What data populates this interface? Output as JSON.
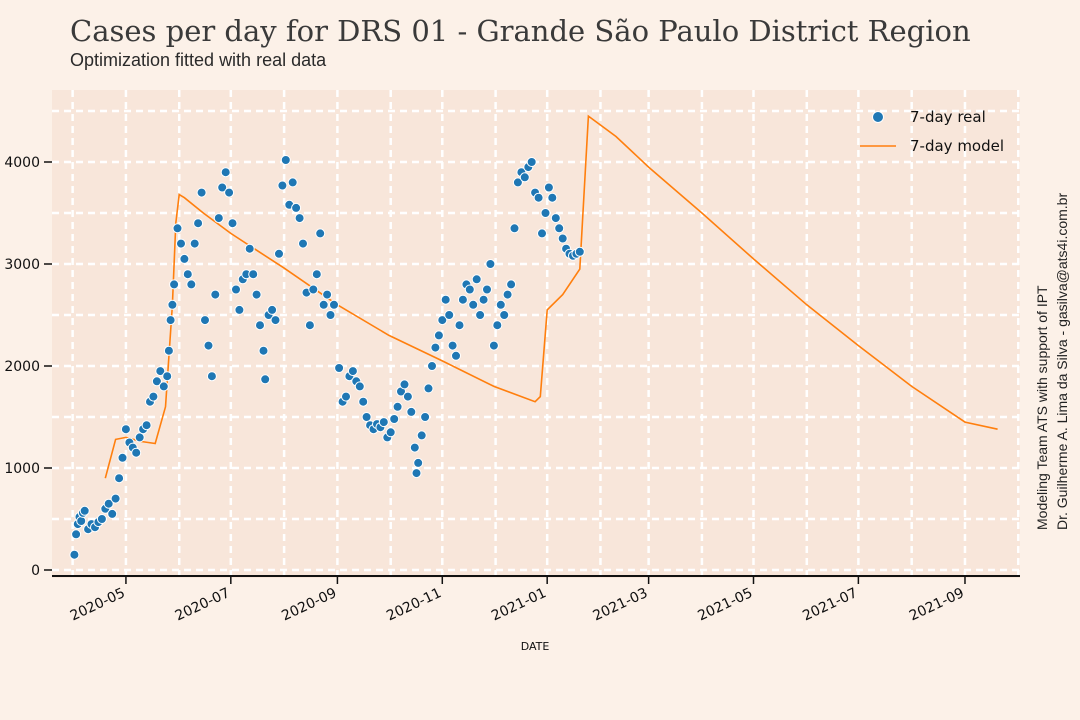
{
  "header": {
    "title": "Cases per day for DRS 01 - Grande São Paulo District Region",
    "subtitle": "Optimization fitted with real data"
  },
  "credits": {
    "line1": "Modeling Team ATS with support of IPT",
    "line2": "Dr. Guilherme A. Lima da Silva - gasilva@ats4i.com.br"
  },
  "colors": {
    "background": "#fcf1e8",
    "plot_bg": "#f8e6da",
    "grid": "#ffffff",
    "real": "#1f77b4",
    "model": "#ff7f0e"
  },
  "chart_data": {
    "type": "line",
    "xlabel": "DATE",
    "ylabel": "",
    "x_range": [
      "2020-03-19",
      "2021-10-03"
    ],
    "ylim": [
      -50,
      4700
    ],
    "yticks": [
      0,
      1000,
      2000,
      3000,
      4000
    ],
    "ytick_labels": [
      "0",
      "1000",
      "2000",
      "3000",
      "4000"
    ],
    "xticks": [
      "2020-05-01",
      "2020-07-01",
      "2020-09-01",
      "2020-11-01",
      "2021-01-01",
      "2021-03-01",
      "2021-05-01",
      "2021-07-01",
      "2021-09-01"
    ],
    "xtick_labels": [
      "2020-05",
      "2020-07",
      "2020-09",
      "2020-11",
      "2021-01",
      "2021-03",
      "2021-05",
      "2021-07",
      "2021-09"
    ],
    "grid": true,
    "legend_position": "top-right",
    "series": [
      {
        "name": "7-day real",
        "kind": "scatter",
        "points": [
          [
            "2020-04-01",
            150
          ],
          [
            "2020-04-02",
            350
          ],
          [
            "2020-04-03",
            450
          ],
          [
            "2020-04-04",
            520
          ],
          [
            "2020-04-05",
            480
          ],
          [
            "2020-04-06",
            560
          ],
          [
            "2020-04-07",
            580
          ],
          [
            "2020-04-09",
            400
          ],
          [
            "2020-04-11",
            450
          ],
          [
            "2020-04-13",
            420
          ],
          [
            "2020-04-15",
            470
          ],
          [
            "2020-04-17",
            500
          ],
          [
            "2020-04-19",
            600
          ],
          [
            "2020-04-21",
            650
          ],
          [
            "2020-04-23",
            550
          ],
          [
            "2020-04-25",
            700
          ],
          [
            "2020-04-27",
            900
          ],
          [
            "2020-04-29",
            1100
          ],
          [
            "2020-05-01",
            1380
          ],
          [
            "2020-05-03",
            1250
          ],
          [
            "2020-05-05",
            1200
          ],
          [
            "2020-05-07",
            1150
          ],
          [
            "2020-05-09",
            1300
          ],
          [
            "2020-05-11",
            1380
          ],
          [
            "2020-05-13",
            1420
          ],
          [
            "2020-05-15",
            1650
          ],
          [
            "2020-05-17",
            1700
          ],
          [
            "2020-05-19",
            1850
          ],
          [
            "2020-05-21",
            1950
          ],
          [
            "2020-05-23",
            1800
          ],
          [
            "2020-05-25",
            1900
          ],
          [
            "2020-05-26",
            2150
          ],
          [
            "2020-05-27",
            2450
          ],
          [
            "2020-05-28",
            2600
          ],
          [
            "2020-05-29",
            2800
          ],
          [
            "2020-05-31",
            3350
          ],
          [
            "2020-06-02",
            3200
          ],
          [
            "2020-06-04",
            3050
          ],
          [
            "2020-06-06",
            2900
          ],
          [
            "2020-06-08",
            2800
          ],
          [
            "2020-06-10",
            3200
          ],
          [
            "2020-06-12",
            3400
          ],
          [
            "2020-06-14",
            3700
          ],
          [
            "2020-06-16",
            2450
          ],
          [
            "2020-06-18",
            2200
          ],
          [
            "2020-06-20",
            1900
          ],
          [
            "2020-06-22",
            2700
          ],
          [
            "2020-06-24",
            3450
          ],
          [
            "2020-06-26",
            3750
          ],
          [
            "2020-06-28",
            3900
          ],
          [
            "2020-06-30",
            3700
          ],
          [
            "2020-07-02",
            3400
          ],
          [
            "2020-07-04",
            2750
          ],
          [
            "2020-07-06",
            2550
          ],
          [
            "2020-07-08",
            2850
          ],
          [
            "2020-07-10",
            2900
          ],
          [
            "2020-07-12",
            3150
          ],
          [
            "2020-07-14",
            2900
          ],
          [
            "2020-07-16",
            2700
          ],
          [
            "2020-07-18",
            2400
          ],
          [
            "2020-07-20",
            2150
          ],
          [
            "2020-07-21",
            1870
          ],
          [
            "2020-07-23",
            2500
          ],
          [
            "2020-07-25",
            2550
          ],
          [
            "2020-07-27",
            2450
          ],
          [
            "2020-07-29",
            3100
          ],
          [
            "2020-07-31",
            3770
          ],
          [
            "2020-08-02",
            4020
          ],
          [
            "2020-08-04",
            3580
          ],
          [
            "2020-08-06",
            3800
          ],
          [
            "2020-08-08",
            3550
          ],
          [
            "2020-08-10",
            3450
          ],
          [
            "2020-08-12",
            3200
          ],
          [
            "2020-08-14",
            2720
          ],
          [
            "2020-08-16",
            2400
          ],
          [
            "2020-08-18",
            2750
          ],
          [
            "2020-08-20",
            2900
          ],
          [
            "2020-08-22",
            3300
          ],
          [
            "2020-08-24",
            2600
          ],
          [
            "2020-08-26",
            2700
          ],
          [
            "2020-08-28",
            2500
          ],
          [
            "2020-08-30",
            2600
          ],
          [
            "2020-09-02",
            1980
          ],
          [
            "2020-09-04",
            1650
          ],
          [
            "2020-09-06",
            1700
          ],
          [
            "2020-09-08",
            1900
          ],
          [
            "2020-09-10",
            1950
          ],
          [
            "2020-09-12",
            1850
          ],
          [
            "2020-09-14",
            1800
          ],
          [
            "2020-09-16",
            1650
          ],
          [
            "2020-09-18",
            1500
          ],
          [
            "2020-09-20",
            1420
          ],
          [
            "2020-09-22",
            1380
          ],
          [
            "2020-09-24",
            1430
          ],
          [
            "2020-09-26",
            1400
          ],
          [
            "2020-09-28",
            1450
          ],
          [
            "2020-09-30",
            1300
          ],
          [
            "2020-10-02",
            1350
          ],
          [
            "2020-10-04",
            1480
          ],
          [
            "2020-10-06",
            1600
          ],
          [
            "2020-10-08",
            1750
          ],
          [
            "2020-10-10",
            1820
          ],
          [
            "2020-10-12",
            1700
          ],
          [
            "2020-10-14",
            1550
          ],
          [
            "2020-10-16",
            1200
          ],
          [
            "2020-10-17",
            950
          ],
          [
            "2020-10-18",
            1050
          ],
          [
            "2020-10-20",
            1320
          ],
          [
            "2020-10-22",
            1500
          ],
          [
            "2020-10-24",
            1780
          ],
          [
            "2020-10-26",
            2000
          ],
          [
            "2020-10-28",
            2180
          ],
          [
            "2020-10-30",
            2300
          ],
          [
            "2020-11-01",
            2450
          ],
          [
            "2020-11-03",
            2650
          ],
          [
            "2020-11-05",
            2500
          ],
          [
            "2020-11-07",
            2200
          ],
          [
            "2020-11-09",
            2100
          ],
          [
            "2020-11-11",
            2400
          ],
          [
            "2020-11-13",
            2650
          ],
          [
            "2020-11-15",
            2800
          ],
          [
            "2020-11-17",
            2750
          ],
          [
            "2020-11-19",
            2600
          ],
          [
            "2020-11-21",
            2850
          ],
          [
            "2020-11-23",
            2500
          ],
          [
            "2020-11-25",
            2650
          ],
          [
            "2020-11-27",
            2750
          ],
          [
            "2020-11-29",
            3000
          ],
          [
            "2020-12-01",
            2200
          ],
          [
            "2020-12-03",
            2400
          ],
          [
            "2020-12-05",
            2600
          ],
          [
            "2020-12-07",
            2500
          ],
          [
            "2020-12-09",
            2700
          ],
          [
            "2020-12-11",
            2800
          ],
          [
            "2020-12-13",
            3350
          ],
          [
            "2020-12-15",
            3800
          ],
          [
            "2020-12-17",
            3900
          ],
          [
            "2020-12-19",
            3850
          ],
          [
            "2020-12-21",
            3950
          ],
          [
            "2020-12-23",
            4000
          ],
          [
            "2020-12-25",
            3700
          ],
          [
            "2020-12-27",
            3650
          ],
          [
            "2020-12-29",
            3300
          ],
          [
            "2020-12-31",
            3500
          ],
          [
            "2021-01-02",
            3750
          ],
          [
            "2021-01-04",
            3650
          ],
          [
            "2021-01-06",
            3450
          ],
          [
            "2021-01-08",
            3350
          ],
          [
            "2021-01-10",
            3250
          ],
          [
            "2021-01-12",
            3150
          ],
          [
            "2021-01-14",
            3100
          ],
          [
            "2021-01-16",
            3080
          ],
          [
            "2021-01-18",
            3100
          ],
          [
            "2021-01-20",
            3120
          ]
        ]
      },
      {
        "name": "7-day model",
        "kind": "line",
        "points": [
          [
            "2020-04-19",
            900
          ],
          [
            "2020-04-25",
            1280
          ],
          [
            "2020-05-01",
            1300
          ],
          [
            "2020-05-10",
            1260
          ],
          [
            "2020-05-18",
            1240
          ],
          [
            "2020-05-24",
            1600
          ],
          [
            "2020-05-28",
            2600
          ],
          [
            "2020-05-30",
            3400
          ],
          [
            "2020-06-01",
            3680
          ],
          [
            "2020-06-04",
            3650
          ],
          [
            "2020-06-15",
            3500
          ],
          [
            "2020-07-01",
            3300
          ],
          [
            "2020-08-01",
            2960
          ],
          [
            "2020-09-01",
            2600
          ],
          [
            "2020-10-01",
            2300
          ],
          [
            "2020-11-01",
            2050
          ],
          [
            "2020-12-01",
            1800
          ],
          [
            "2020-12-25",
            1650
          ],
          [
            "2020-12-28",
            1700
          ],
          [
            "2021-01-01",
            2550
          ],
          [
            "2021-01-10",
            2700
          ],
          [
            "2021-01-20",
            2950
          ],
          [
            "2021-01-25",
            4450
          ],
          [
            "2021-02-10",
            4250
          ],
          [
            "2021-03-01",
            3950
          ],
          [
            "2021-04-01",
            3500
          ],
          [
            "2021-05-01",
            3050
          ],
          [
            "2021-06-01",
            2600
          ],
          [
            "2021-07-01",
            2200
          ],
          [
            "2021-08-01",
            1800
          ],
          [
            "2021-09-01",
            1450
          ],
          [
            "2021-09-20",
            1380
          ]
        ]
      }
    ]
  }
}
